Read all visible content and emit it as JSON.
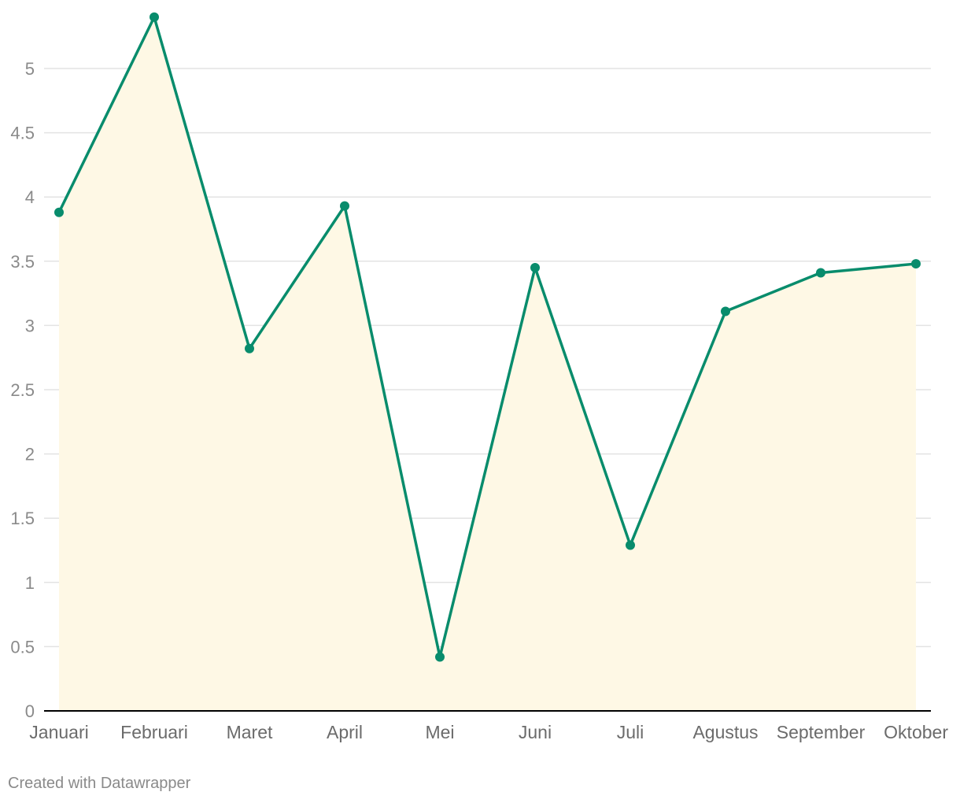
{
  "chart_data": {
    "type": "area",
    "title": "",
    "xlabel": "",
    "ylabel": "",
    "categories": [
      "Januari",
      "Februari",
      "Maret",
      "April",
      "Mei",
      "Juni",
      "Juli",
      "Agustus",
      "September",
      "Oktober"
    ],
    "values": [
      3.88,
      5.4,
      2.82,
      3.93,
      0.42,
      3.45,
      1.29,
      3.11,
      3.41,
      3.48
    ],
    "ylim": [
      0,
      5.4
    ],
    "yticks": [
      0,
      0.5,
      1,
      1.5,
      2,
      2.5,
      3,
      3.5,
      4,
      4.5,
      5
    ],
    "ytick_labels": [
      "0",
      "0.5",
      "1",
      "1.5",
      "2",
      "2.5",
      "3",
      "3.5",
      "4",
      "4.5",
      "5"
    ],
    "grid": true,
    "colors": {
      "line": "#088c6c",
      "area": "#fef8e5",
      "grid": "#e3e3e3",
      "axis": "#000000"
    }
  },
  "footer": {
    "credit": "Created with Datawrapper"
  }
}
